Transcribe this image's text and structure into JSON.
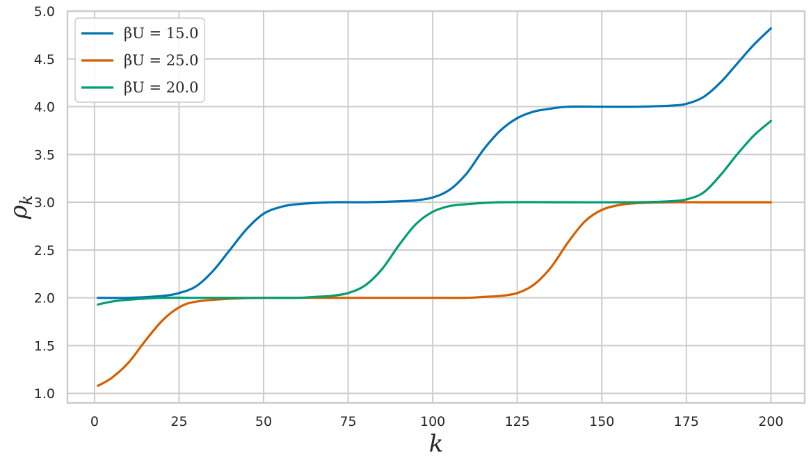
{
  "chart_data": {
    "type": "line",
    "title": "",
    "xlabel": "k",
    "ylabel": "ρ",
    "ylabel_sub": "k",
    "xlim": [
      -8,
      210
    ],
    "ylim": [
      0.9,
      5.0
    ],
    "xticks": [
      0,
      25,
      50,
      75,
      100,
      125,
      150,
      175,
      200
    ],
    "xtick_labels": [
      "0",
      "25",
      "50",
      "75",
      "100",
      "125",
      "150",
      "175",
      "200"
    ],
    "yticks": [
      1.0,
      1.5,
      2.0,
      2.5,
      3.0,
      3.5,
      4.0,
      4.5,
      5.0
    ],
    "ytick_labels": [
      "1.0",
      "1.5",
      "2.0",
      "2.5",
      "3.0",
      "3.5",
      "4.0",
      "4.5",
      "5.0"
    ],
    "grid": true,
    "legend_position": "top-left",
    "series": [
      {
        "name": "βU = 15.0",
        "color": "#0173b2",
        "x": [
          1,
          10,
          20,
          25,
          30,
          35,
          40,
          45,
          50,
          55,
          60,
          70,
          80,
          90,
          95,
          100,
          105,
          110,
          115,
          120,
          125,
          130,
          135,
          140,
          150,
          160,
          170,
          175,
          180,
          185,
          190,
          195,
          200
        ],
        "y": [
          2.0,
          2.0,
          2.02,
          2.05,
          2.12,
          2.28,
          2.5,
          2.72,
          2.88,
          2.95,
          2.98,
          3.0,
          3.0,
          3.01,
          3.02,
          3.05,
          3.13,
          3.3,
          3.55,
          3.75,
          3.88,
          3.95,
          3.98,
          4.0,
          4.0,
          4.0,
          4.01,
          4.03,
          4.1,
          4.25,
          4.45,
          4.65,
          4.82
        ]
      },
      {
        "name": "βU = 25.0",
        "color": "#d55e00",
        "x": [
          1,
          5,
          10,
          15,
          20,
          25,
          30,
          40,
          50,
          60,
          80,
          100,
          110,
          115,
          120,
          125,
          130,
          135,
          140,
          145,
          150,
          155,
          160,
          170,
          180,
          200
        ],
        "y": [
          1.08,
          1.16,
          1.32,
          1.55,
          1.76,
          1.9,
          1.96,
          1.99,
          2.0,
          2.0,
          2.0,
          2.0,
          2.0,
          2.01,
          2.02,
          2.05,
          2.14,
          2.32,
          2.58,
          2.8,
          2.92,
          2.97,
          2.99,
          3.0,
          3.0,
          3.0
        ]
      },
      {
        "name": "βU = 20.0",
        "color": "#029e73",
        "x": [
          1,
          5,
          10,
          20,
          30,
          40,
          50,
          60,
          65,
          70,
          75,
          80,
          85,
          90,
          95,
          100,
          105,
          110,
          120,
          140,
          160,
          170,
          175,
          180,
          185,
          190,
          195,
          200
        ],
        "y": [
          1.93,
          1.96,
          1.98,
          2.0,
          2.0,
          2.0,
          2.0,
          2.0,
          2.01,
          2.02,
          2.05,
          2.13,
          2.3,
          2.55,
          2.77,
          2.9,
          2.96,
          2.98,
          3.0,
          3.0,
          3.0,
          3.01,
          3.03,
          3.1,
          3.28,
          3.5,
          3.7,
          3.85
        ]
      }
    ]
  }
}
